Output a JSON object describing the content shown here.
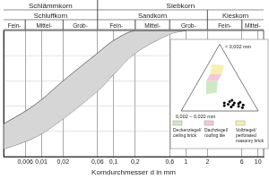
{
  "chart_data": {
    "type": "line",
    "x_label": "Korndurchmesser d in mm",
    "x": [
      0.003,
      0.006,
      0.01,
      0.02,
      0.06,
      0.1,
      0.2,
      0.6,
      1
    ],
    "series": [
      {
        "color": "#555555",
        "values": [
          26,
          36,
          45,
          60,
          82,
          92,
          100,
          100,
          100
        ]
      },
      {
        "color": "#555555",
        "values": [
          6,
          12,
          18,
          30,
          52,
          65,
          82,
          97,
          100
        ]
      }
    ],
    "xlim": [
      0.003,
      12
    ],
    "xticks": [
      {
        "value": 0.006,
        "label": "0,006"
      },
      {
        "value": 0.01,
        "label": "0,01"
      },
      {
        "value": 0.02,
        "label": "0,02"
      },
      {
        "value": 0.06,
        "label": "0,06"
      },
      {
        "value": 0.1,
        "label": "0,1"
      },
      {
        "value": 0.2,
        "label": "0,2"
      },
      {
        "value": 0.6,
        "label": "0,6"
      },
      1,
      2,
      6,
      10
    ],
    "ylim": [
      0,
      100
    ],
    "yticks": [
      0,
      20,
      40,
      60,
      80,
      100
    ],
    "log": "x",
    "grid": true,
    "tick_labels": "x"
  },
  "header": [
    [
      {
        "label": "Schlämmkorn",
        "to": 0.06
      },
      {
        "label": "Siebkorn",
        "from": 0.06
      }
    ],
    [
      {
        "label": "Schluffkorn",
        "from": 0.002,
        "to": 0.06
      },
      {
        "label": "Sandkorn",
        "from": 0.06,
        "to": 2
      },
      {
        "label": "Kieskorn",
        "from": 2,
        "to": 60
      }
    ],
    [
      {
        "label": "Fein-",
        "from": 0.002,
        "to": 0.006
      },
      {
        "label": "Mittel-",
        "from": 0.006,
        "to": 0.02
      },
      {
        "label": "Grob-",
        "from": 0.02,
        "to": 0.06
      },
      {
        "label": "Fein-",
        "from": 0.06,
        "to": 0.2
      },
      {
        "label": "Mittel-",
        "from": 0.2,
        "to": 0.6
      },
      {
        "label": "Grob-",
        "from": 0.6,
        "to": 2
      },
      {
        "label": "Fein-",
        "from": 2,
        "to": 6
      },
      {
        "label": "Mittel-",
        "from": 6,
        "to": 20
      }
    ]
  ],
  "ternary": {
    "top_label": "< 0,002 mm",
    "left_label": "0,002 – 0,020 mm",
    "regions": [
      {
        "label": [
          "Deckenziegel/",
          "ceiling brick"
        ],
        "color": "#cfe8c4",
        "points": [
          [
            25,
            55
          ],
          [
            45,
            45
          ],
          [
            45,
            30
          ],
          [
            28,
            40
          ]
        ]
      },
      {
        "label": [
          "Dachziegel/",
          "roofing tile"
        ],
        "color": "#f3c9d8",
        "points": [
          [
            45,
            30
          ],
          [
            45,
            45
          ],
          [
            55,
            35
          ],
          [
            55,
            20
          ]
        ]
      },
      {
        "label": [
          "Vollziegel/",
          "perforated",
          "masonry brick"
        ],
        "color": "#f5f0b0",
        "points": [
          [
            55,
            20
          ],
          [
            55,
            35
          ],
          [
            70,
            25
          ],
          [
            68,
            10
          ]
        ]
      }
    ],
    "points": [
      [
        8,
        40
      ],
      [
        12,
        38
      ],
      [
        10,
        34
      ],
      [
        6,
        32
      ],
      [
        14,
        30
      ],
      [
        9,
        28
      ],
      [
        12,
        25
      ],
      [
        7,
        22
      ],
      [
        16,
        26
      ],
      [
        11,
        20
      ],
      [
        5,
        18
      ],
      [
        9,
        15
      ],
      [
        13,
        17
      ]
    ]
  }
}
